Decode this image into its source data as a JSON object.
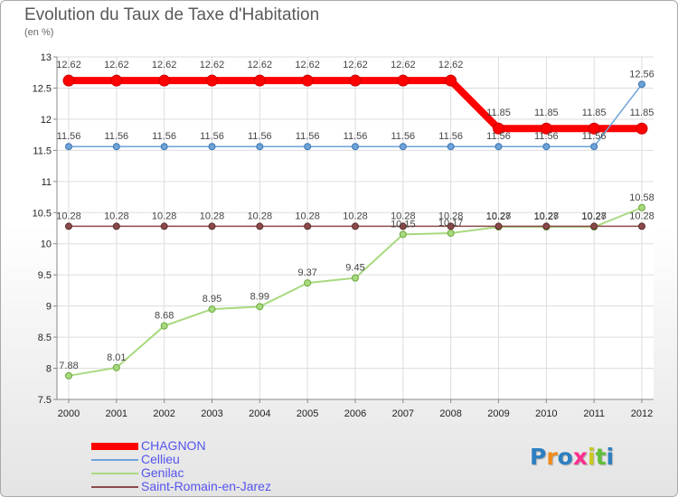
{
  "title": "Evolution du Taux de Taxe d'Habitation",
  "subtitle": "(en %)",
  "colors": {
    "series": [
      "#ff0000",
      "#6ea3d9",
      "#a8d97f",
      "#8b4a4a"
    ],
    "background": "#ffffff",
    "grid": "#dddddd"
  },
  "logo": {
    "letters": [
      "P",
      "r",
      "o",
      "x",
      "i",
      "t",
      "i"
    ],
    "colors": [
      "#2d7fc1",
      "#f08c1a",
      "#2d7fc1",
      "#ff2e8e",
      "#c8c820",
      "#5fbf3a",
      "#2d7fc1"
    ]
  },
  "chart_data": {
    "type": "line",
    "title": "Evolution du Taux de Taxe d'Habitation",
    "ylabel": "(en %)",
    "xlabel": "",
    "x": [
      "2000",
      "2001",
      "2002",
      "2003",
      "2004",
      "2005",
      "2006",
      "2007",
      "2008",
      "2009",
      "2010",
      "2011",
      "2012"
    ],
    "ylim": [
      7.5,
      13
    ],
    "yticks": [
      "7.5",
      "8",
      "8.5",
      "9",
      "9.5",
      "10",
      "10.5",
      "11",
      "11.5",
      "12",
      "12.5",
      "13"
    ],
    "grid": true,
    "legend_position": "bottom-left",
    "series": [
      {
        "name": "CHAGNON",
        "color": "#ff0000",
        "values": [
          12.62,
          12.62,
          12.62,
          12.62,
          12.62,
          12.62,
          12.62,
          12.62,
          12.62,
          11.85,
          11.85,
          11.85,
          11.85
        ],
        "labels": [
          "12.62",
          "12.62",
          "12.62",
          "12.62",
          "12.62",
          "12.62",
          "12.62",
          "12.62",
          "12.62",
          "11.85",
          "11.85",
          "11.85",
          "11.85"
        ]
      },
      {
        "name": "Cellieu",
        "color": "#6ea3d9",
        "values": [
          11.56,
          11.56,
          11.56,
          11.56,
          11.56,
          11.56,
          11.56,
          11.56,
          11.56,
          11.56,
          11.56,
          11.56,
          12.56
        ],
        "labels": [
          "11.56",
          "11.56",
          "11.56",
          "11.56",
          "11.56",
          "11.56",
          "11.56",
          "11.56",
          "11.56",
          "11.56",
          "11.56",
          "11.56",
          "12.56"
        ]
      },
      {
        "name": "Genilac",
        "color": "#a8d97f",
        "values": [
          7.88,
          8.01,
          8.68,
          8.95,
          8.99,
          9.37,
          9.45,
          10.15,
          10.17,
          10.27,
          10.27,
          10.27,
          10.58
        ],
        "labels": [
          "7.88",
          "8.01",
          "8.68",
          "8.95",
          "8.99",
          "9.37",
          "9.45",
          "10.15",
          "10.17",
          "10.27",
          "10.27",
          "10.27",
          "10.58"
        ]
      },
      {
        "name": "Saint-Romain-en-Jarez",
        "color": "#8b4a4a",
        "values": [
          10.28,
          10.28,
          10.28,
          10.28,
          10.28,
          10.28,
          10.28,
          10.28,
          10.28,
          10.28,
          10.28,
          10.28,
          10.28
        ],
        "labels": [
          "10.28",
          "10.28",
          "10.28",
          "10.28",
          "10.28",
          "10.28",
          "10.28",
          "10.28",
          "10.28",
          "10.28",
          "10.28",
          "10.28",
          "10.28"
        ]
      }
    ]
  }
}
